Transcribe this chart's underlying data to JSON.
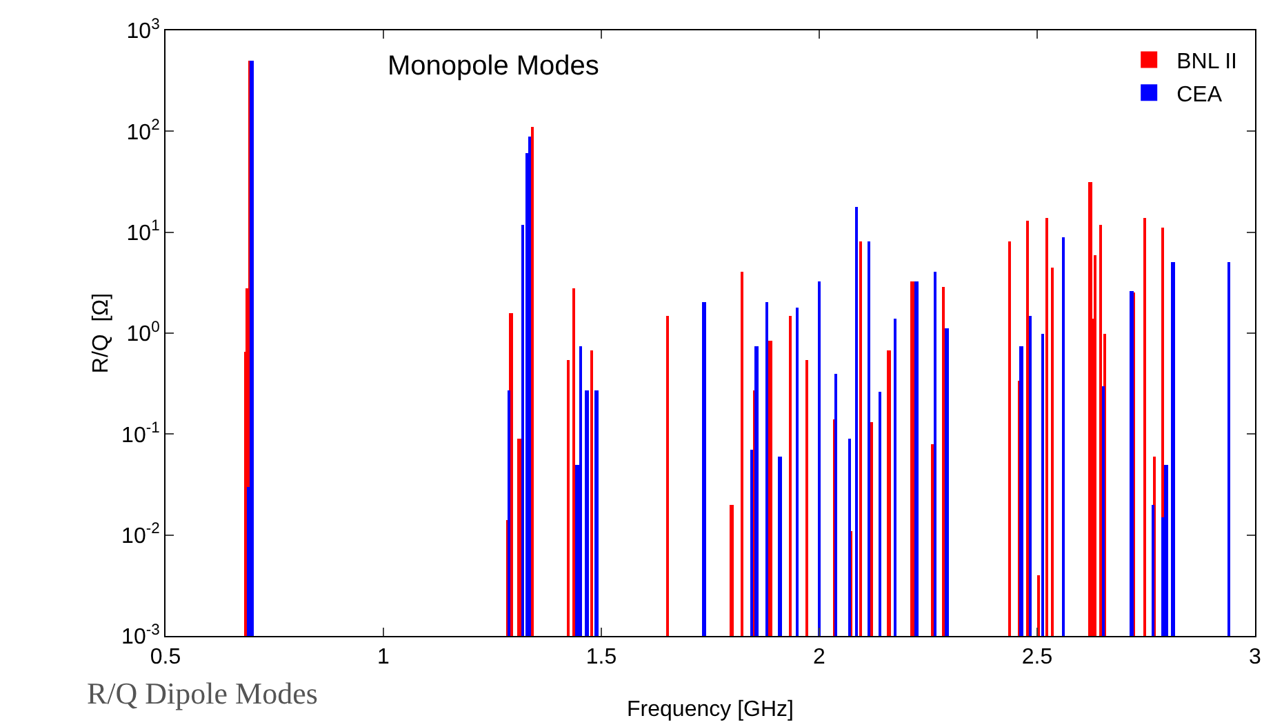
{
  "chart_data": {
    "type": "bar",
    "xlabel": "Frequency [GHz]",
    "ylabel": "R/Q  [Ω]",
    "log": true,
    "grid": false,
    "legend": "top right",
    "xlim": [
      0.5,
      3
    ],
    "xticks": [
      0.5,
      1,
      1.5,
      2,
      2.5,
      3
    ],
    "ylim": [
      0.001,
      1000
    ],
    "yticks": [
      {
        "value": 0.001,
        "label": "10$^{-3}$"
      },
      {
        "value": 0.01,
        "label": "10$^{-2}$"
      },
      {
        "value": 0.1,
        "label": "10$^{-1}$"
      },
      {
        "value": 1,
        "label": "10$^{0}$"
      },
      {
        "value": 10,
        "label": "10$^{1}$"
      },
      {
        "value": 100,
        "label": "10$^{2}$"
      },
      {
        "value": 1000,
        "label": "10$^{3}$"
      }
    ],
    "annotations": [
      "Monopole Modes",
      "R/Q Dipole Modes"
    ],
    "series": [
      {
        "name": "BNL II",
        "color": "#ff0000",
        "x": [
          0.684,
          0.688,
          0.694,
          1.285,
          1.294,
          1.313,
          1.342,
          1.424,
          1.437,
          1.478,
          1.652,
          1.8,
          1.823,
          1.854,
          1.889,
          1.934,
          1.972,
          2.035,
          2.073,
          2.095,
          2.12,
          2.161,
          2.215,
          2.26,
          2.286,
          2.437,
          2.459,
          2.478,
          2.503,
          2.522,
          2.535,
          2.623,
          2.626,
          2.633,
          2.646,
          2.655,
          2.722,
          2.747,
          2.769,
          2.788
        ],
        "values": [
          0.65,
          2.8,
          500,
          0.014,
          1.6,
          0.09,
          110,
          0.55,
          2.8,
          0.68,
          1.5,
          0.02,
          4,
          0.27,
          0.85,
          1.5,
          0.55,
          0.14,
          0.011,
          8,
          0.13,
          0.68,
          3.3,
          0.08,
          2.9,
          8,
          0.34,
          13,
          0.004,
          14,
          4.5,
          31,
          1.4,
          6,
          12,
          1,
          2.5,
          14,
          0.06,
          11
        ]
      },
      {
        "name": "CEA",
        "color": "#0000ff",
        "x": [
          0.692,
          0.698,
          1.288,
          1.32,
          1.33,
          1.336,
          1.446,
          1.453,
          1.468,
          1.49,
          1.737,
          1.845,
          1.857,
          1.88,
          1.911,
          1.95,
          2,
          2.038,
          2.07,
          2.087,
          2.114,
          2.14,
          2.174,
          2.224,
          2.266,
          2.294,
          2.465,
          2.484,
          2.513,
          2.56,
          2.652,
          2.718,
          2.766,
          2.788,
          2.797,
          2.813,
          2.94
        ],
        "values": [
          0.03,
          500,
          0.27,
          12,
          60,
          90,
          0.05,
          0.75,
          0.27,
          0.27,
          2,
          0.07,
          0.75,
          2,
          0.06,
          1.8,
          3.3,
          0.4,
          0.09,
          18,
          8,
          0.26,
          1.4,
          3.3,
          4,
          1.1,
          0.75,
          1.5,
          1,
          9,
          0.3,
          2.6,
          0.02,
          0.015,
          0.05,
          5,
          5
        ]
      }
    ]
  }
}
